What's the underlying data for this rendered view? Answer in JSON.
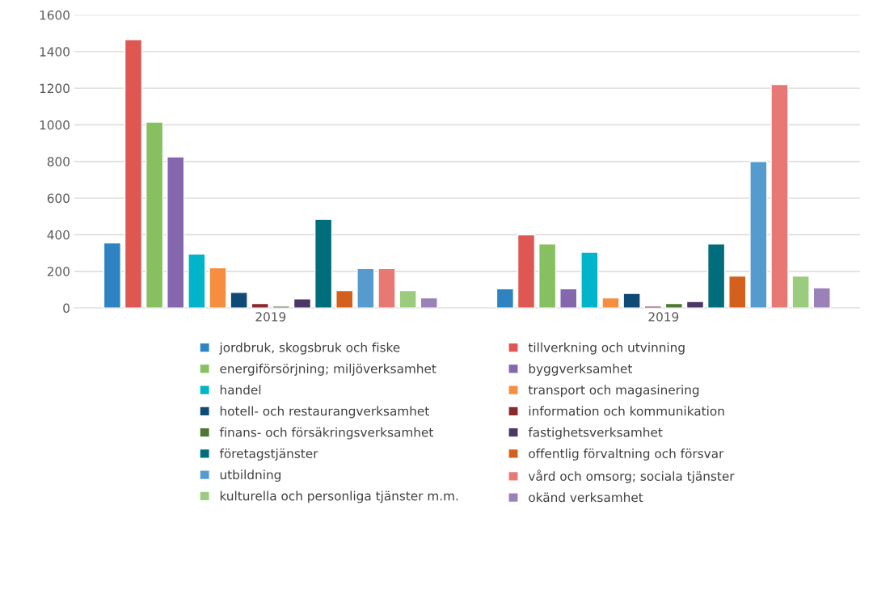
{
  "chart_data": {
    "type": "bar",
    "categories": [
      "2019",
      "2019"
    ],
    "series": [
      {
        "name": "jordbruk, skogsbruk och fiske",
        "color": "#2e83c3",
        "values": [
          355,
          105
        ]
      },
      {
        "name": "tillverkning och utvinning",
        "color": "#df5753",
        "values": [
          1465,
          400
        ]
      },
      {
        "name": "energiförsörjning; miljöverksamhet",
        "color": "#86c060",
        "values": [
          1015,
          350
        ]
      },
      {
        "name": "byggverksamhet",
        "color": "#8467ac",
        "values": [
          825,
          105
        ]
      },
      {
        "name": "handel",
        "color": "#00b4c9",
        "values": [
          295,
          305
        ]
      },
      {
        "name": "transport och magasinering",
        "color": "#f68e40",
        "values": [
          220,
          55
        ]
      },
      {
        "name": "hotell- och restaurangverksamhet",
        "color": "#0e4a73",
        "values": [
          85,
          80
        ]
      },
      {
        "name": "information och kommunikation",
        "color": "#8a2a2c",
        "values": [
          25,
          10
        ]
      },
      {
        "name": "finans- och försäkringsverksamhet",
        "color": "#4e7734",
        "values": [
          10,
          25
        ]
      },
      {
        "name": "fastighetsverksamhet",
        "color": "#4a3765",
        "values": [
          50,
          35
        ]
      },
      {
        "name": "företagstjänster",
        "color": "#006d7d",
        "values": [
          485,
          350
        ]
      },
      {
        "name": "offentlig förvaltning och försvar",
        "color": "#d3611d",
        "values": [
          95,
          175
        ]
      },
      {
        "name": "utbildning",
        "color": "#559bcd",
        "values": [
          215,
          800
        ]
      },
      {
        "name": "vård och omsorg; sociala tjänster",
        "color": "#e87874",
        "values": [
          215,
          1220
        ]
      },
      {
        "name": "kulturella och personliga tjänster m.m.",
        "color": "#9bcb7d",
        "values": [
          95,
          175
        ]
      },
      {
        "name": "okänd verksamhet",
        "color": "#9a81b8",
        "values": [
          55,
          110
        ]
      }
    ],
    "ylim": [
      0,
      1600
    ],
    "yticks": [
      0,
      200,
      400,
      600,
      800,
      1000,
      1200,
      1400,
      1600
    ],
    "grid": "y",
    "legend": "bottom"
  }
}
